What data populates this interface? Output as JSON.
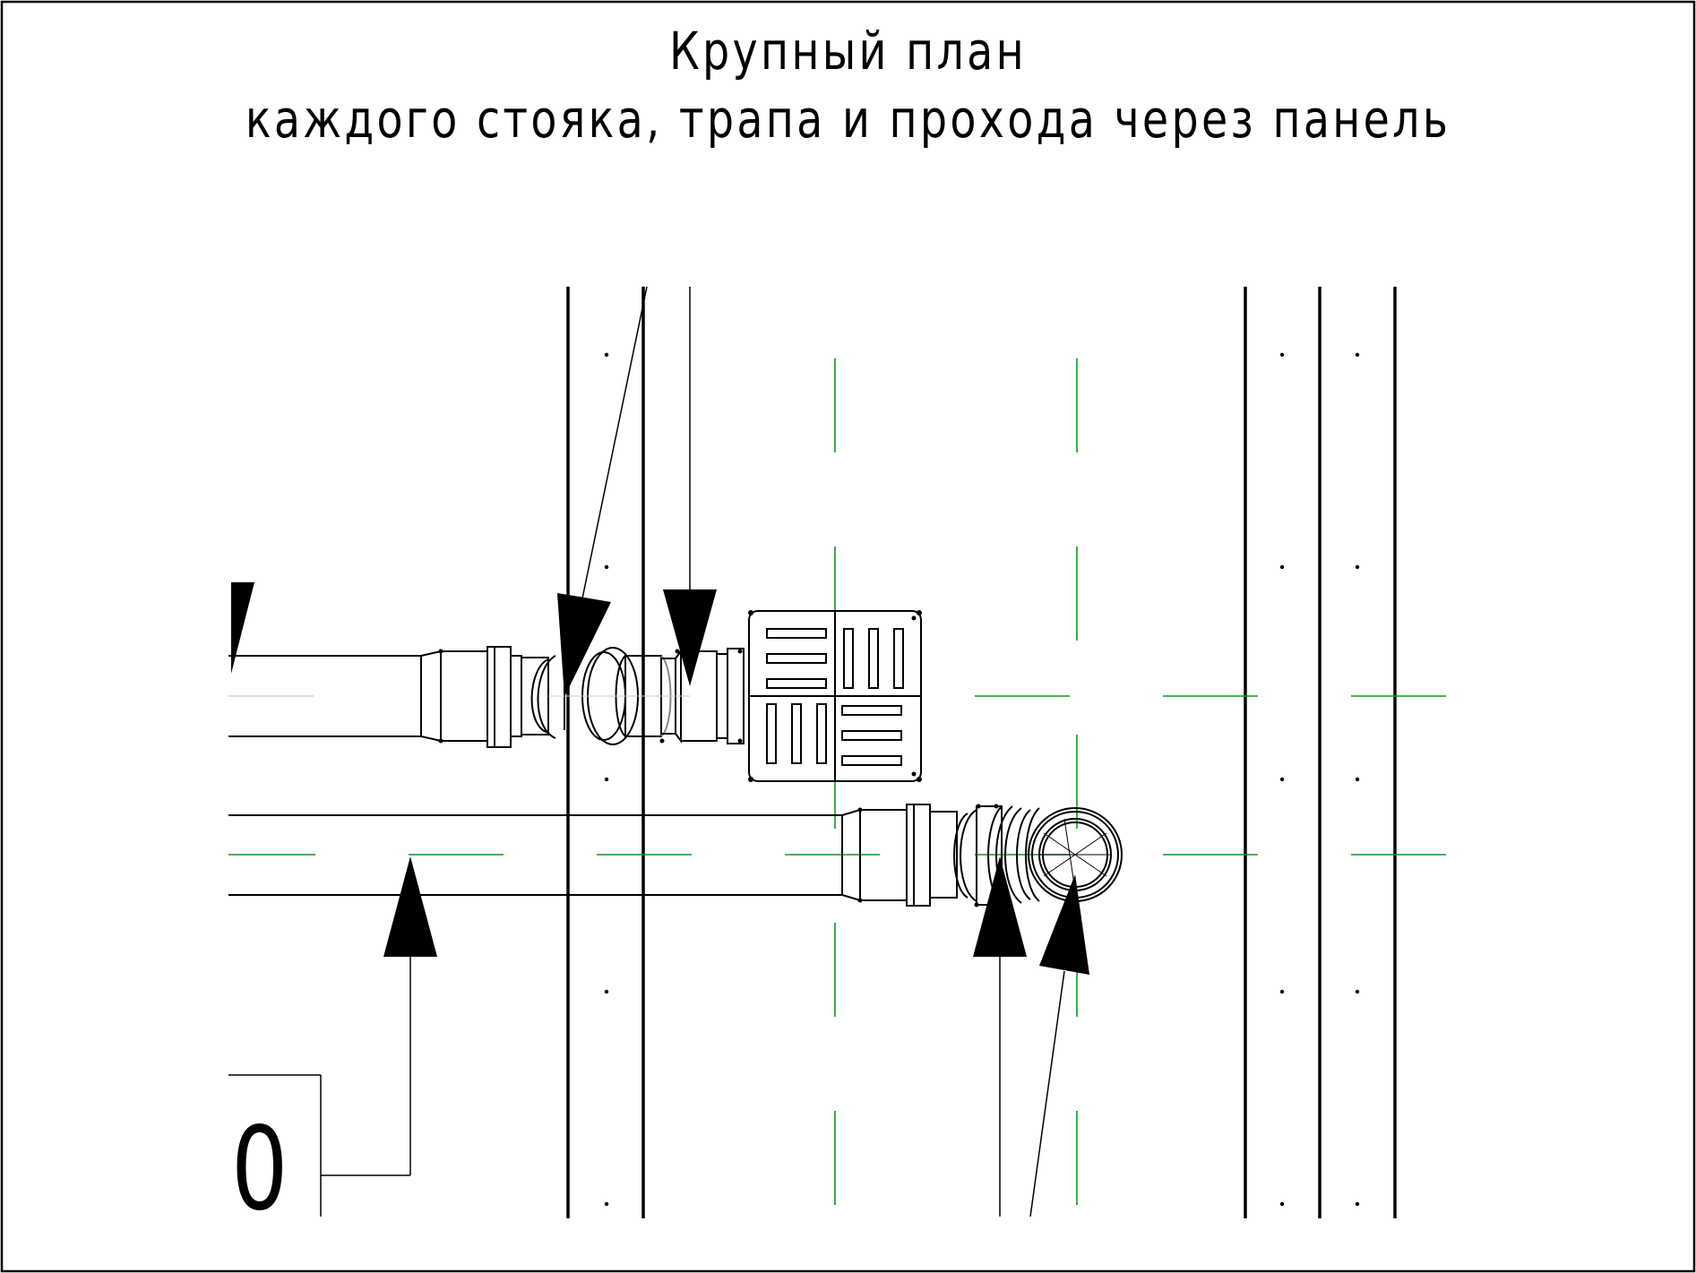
{
  "title": {
    "line1": "Крупный план",
    "line2": "каждого стояка, трапа и прохода через панель"
  },
  "mark_label": "0",
  "colors": {
    "background": "#ffffff",
    "lines": "#000000",
    "centerlines": "#0a9a1a"
  }
}
